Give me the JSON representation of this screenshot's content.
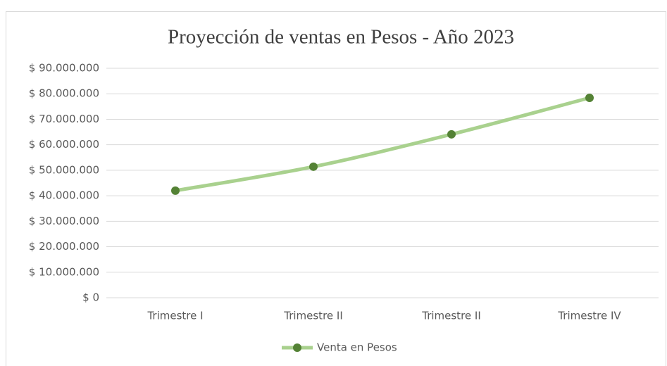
{
  "chart_data": {
    "type": "line",
    "title": "Proyección  de ventas  en Pesos - Año 2023",
    "categories": [
      "Trimestre I",
      "Trimestre II",
      "Trimestre II",
      "Trimestre IV"
    ],
    "series": [
      {
        "name": "Venta en Pesos",
        "color": "#a9d18e",
        "marker_color": "#548235",
        "values": [
          42000000,
          51400000,
          64100000,
          78400000
        ]
      }
    ],
    "ylim": [
      0,
      90000000
    ],
    "yticks": [
      {
        "value": 0,
        "label": "$ 0"
      },
      {
        "value": 10000000,
        "label": "$ 10.000.000"
      },
      {
        "value": 20000000,
        "label": "$ 20.000.000"
      },
      {
        "value": 30000000,
        "label": "$ 30.000.000"
      },
      {
        "value": 40000000,
        "label": "$ 40.000.000"
      },
      {
        "value": 50000000,
        "label": "$ 50.000.000"
      },
      {
        "value": 60000000,
        "label": "$ 60.000.000"
      },
      {
        "value": 70000000,
        "label": "$ 70.000.000"
      },
      {
        "value": 80000000,
        "label": "$ 80.000.000"
      },
      {
        "value": 90000000,
        "label": "$ 90.000.000"
      }
    ],
    "grid": true,
    "legend": "bottom"
  }
}
